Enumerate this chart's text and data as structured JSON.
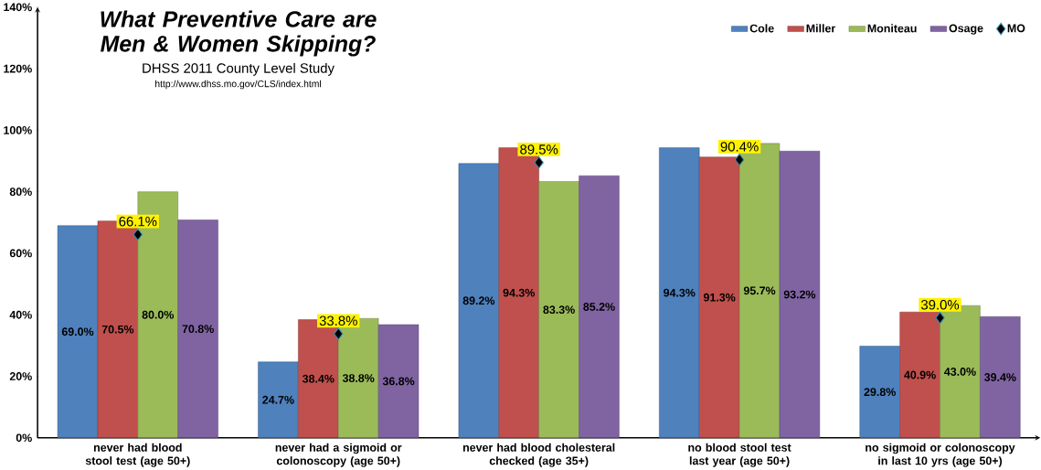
{
  "chart_data": {
    "type": "bar",
    "title": "What Preventive Care are Men & Women Skipping?",
    "subtitle": "DHSS 2011 County Level Study",
    "annotations": [
      "http://www.dhss.mo.gov/CLS/index.html"
    ],
    "categories": [
      "never had blood stool test (age 50+)",
      "never had a sigmoid or colonoscopy (age 50+)",
      "never had blood cholesteral checked (age 35+)",
      "no blood stool test last year (age 50+)",
      "no sigmoid or colonoscopy in last 10 yrs  (age 50+)"
    ],
    "series": [
      {
        "name": "Cole",
        "color": "#4f81bd",
        "values": [
          69.0,
          24.7,
          89.2,
          94.3,
          29.8
        ],
        "value_labels": [
          "69.0%",
          "24.7%",
          "89.2%",
          "94.3%",
          "29.8%"
        ]
      },
      {
        "name": "Miller",
        "color": "#c0504d",
        "values": [
          70.5,
          38.4,
          94.3,
          91.3,
          40.9
        ],
        "value_labels": [
          "70.5%",
          "38.4%",
          "94.3%",
          "91.3%",
          "40.9%"
        ]
      },
      {
        "name": "Moniteau",
        "color": "#9bbb59",
        "values": [
          80.0,
          38.8,
          83.3,
          95.7,
          43.0
        ],
        "value_labels": [
          "80.0%",
          "38.8%",
          "83.3%",
          "95.7%",
          "43.0%"
        ]
      },
      {
        "name": "Osage",
        "color": "#8064a2",
        "values": [
          70.8,
          36.8,
          85.2,
          93.2,
          39.4
        ],
        "value_labels": [
          "70.8%",
          "36.8%",
          "85.2%",
          "93.2%",
          "39.4%"
        ]
      },
      {
        "name": "MO",
        "type": "scatter",
        "marker": "diamond",
        "color": "#000000",
        "values": [
          66.1,
          33.8,
          89.5,
          90.4,
          39.0
        ],
        "value_labels": [
          "66.1%",
          "33.8%",
          "89.5%",
          "90.4%",
          "39.0%"
        ]
      }
    ],
    "ylim": [
      0,
      140
    ],
    "yticks": [
      {
        "value": 0,
        "label": "0%"
      },
      {
        "value": 20,
        "label": "20%"
      },
      {
        "value": 40,
        "label": "40%"
      },
      {
        "value": 60,
        "label": "60%"
      },
      {
        "value": 80,
        "label": "80%"
      },
      {
        "value": 100,
        "label": "100%"
      },
      {
        "value": 120,
        "label": "120%"
      },
      {
        "value": 140,
        "label": "140%"
      }
    ],
    "legend": "top right",
    "grid": false
  }
}
